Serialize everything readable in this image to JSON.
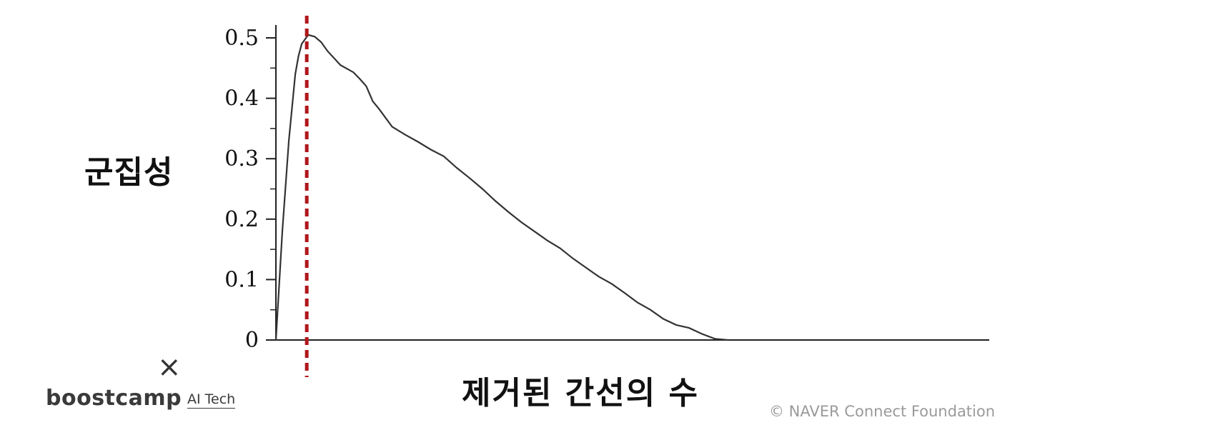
{
  "chart_data": {
    "type": "line",
    "ylabel": "군집성",
    "xlabel": "제거된 간선의 수",
    "ylim": [
      0,
      0.5
    ],
    "yticks": [
      "0",
      "0.1",
      "0.2",
      "0.3",
      "0.4",
      "0.5"
    ],
    "grid": false,
    "x": [
      0,
      1,
      2,
      3,
      3.5,
      4,
      5,
      6,
      7,
      8,
      10,
      12,
      13,
      14,
      15,
      16,
      18,
      20,
      22,
      24,
      26,
      28,
      30,
      32,
      34,
      36,
      38,
      40,
      42,
      44,
      46,
      48,
      50,
      52,
      54,
      56,
      58,
      60,
      62,
      64,
      66,
      68,
      70,
      71,
      72,
      73,
      74,
      75,
      76,
      77,
      78,
      79,
      80,
      81,
      82,
      83,
      84,
      85,
      86,
      87,
      88,
      89,
      90,
      91,
      92,
      93,
      94,
      95,
      96,
      97,
      98,
      99,
      100
    ],
    "values": [
      0,
      0.18,
      0.33,
      0.44,
      0.47,
      0.49,
      0.505,
      0.502,
      0.493,
      0.478,
      0.455,
      0.443,
      0.432,
      0.42,
      0.395,
      0.382,
      0.353,
      0.34,
      0.328,
      0.315,
      0.304,
      0.285,
      0.268,
      0.25,
      0.23,
      0.212,
      0.195,
      0.18,
      0.165,
      0.152,
      0.135,
      0.12,
      0.105,
      0.093,
      0.078,
      0.062,
      0.05,
      0.035,
      0.025,
      0.02,
      0.01,
      0.002,
      0,
      0,
      0,
      0,
      0,
      0,
      0,
      0,
      0,
      0,
      0,
      0,
      0,
      0,
      0,
      0,
      0,
      0,
      0,
      0,
      0,
      0,
      0,
      0,
      0,
      0,
      0,
      0,
      0,
      0,
      0
    ],
    "peak_marker_x": 5,
    "line_color": "#333333",
    "marker_color": "#b0161b"
  },
  "branding": {
    "logo_x": "×",
    "logo_main": "boostcamp",
    "logo_sub": "AI Tech",
    "copyright": "©  NAVER Connect Foundation"
  }
}
